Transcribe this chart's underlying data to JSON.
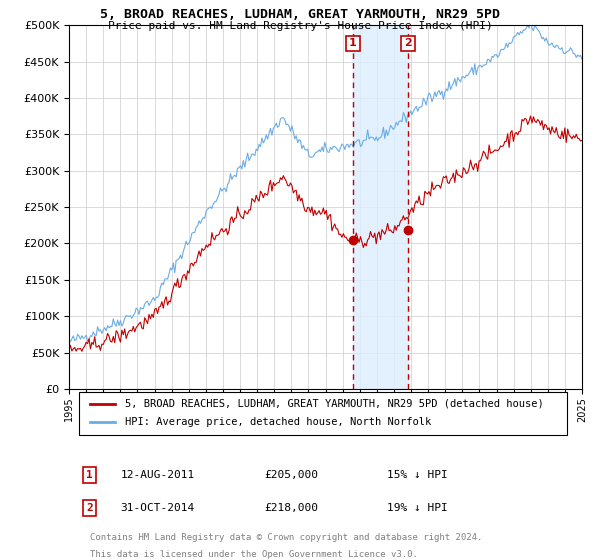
{
  "title": "5, BROAD REACHES, LUDHAM, GREAT YARMOUTH, NR29 5PD",
  "subtitle": "Price paid vs. HM Land Registry's House Price Index (HPI)",
  "sale1": {
    "date": "12-AUG-2011",
    "price": 205000,
    "label": "1",
    "pct": "15% ↓ HPI"
  },
  "sale2": {
    "date": "31-OCT-2014",
    "price": 218000,
    "label": "2",
    "pct": "19% ↓ HPI"
  },
  "legend_line1": "5, BROAD REACHES, LUDHAM, GREAT YARMOUTH, NR29 5PD (detached house)",
  "legend_line2": "HPI: Average price, detached house, North Norfolk",
  "footnote1": "Contains HM Land Registry data © Crown copyright and database right 2024.",
  "footnote2": "This data is licensed under the Open Government Licence v3.0.",
  "hpi_color": "#6aace4",
  "price_color": "#c00000",
  "shade_color": "#ddeeff",
  "ylim_min": 0,
  "ylim_max": 500000,
  "yticks": [
    0,
    50000,
    100000,
    150000,
    200000,
    250000,
    300000,
    350000,
    400000,
    450000,
    500000
  ],
  "sale1_x": 2011.6,
  "sale2_x": 2014.83,
  "xmin": 1995,
  "xmax": 2025
}
